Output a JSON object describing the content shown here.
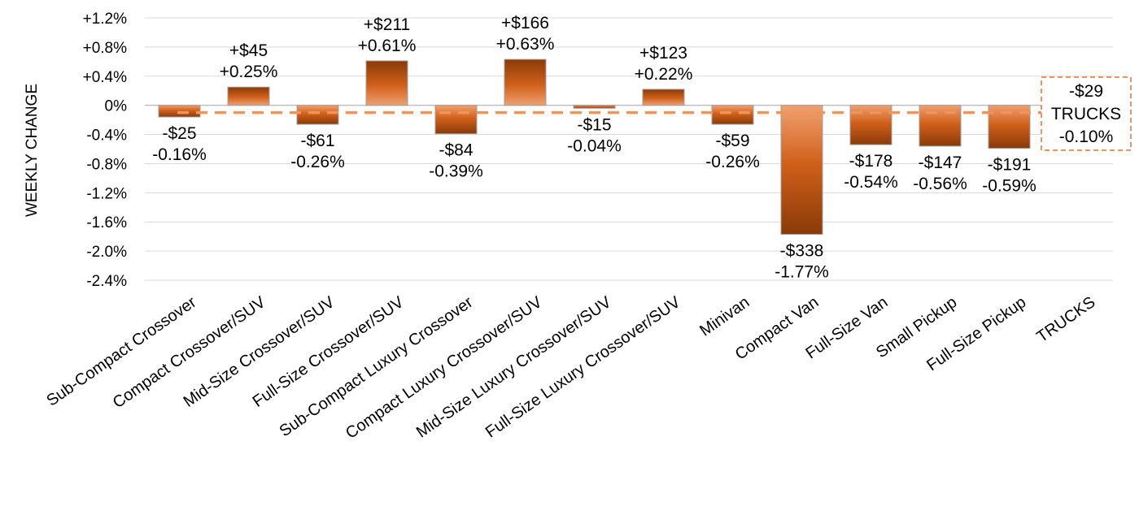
{
  "chart_data": {
    "type": "bar",
    "ylabel": "WEEKLY CHANGE",
    "ylim": [
      -2.4,
      1.2
    ],
    "yticks": [
      "+1.2%",
      "+0.8%",
      "+0.4%",
      "0%",
      "-0.4%",
      "-0.8%",
      "-1.2%",
      "-1.6%",
      "-2.0%",
      "-2.4%"
    ],
    "ytick_values": [
      1.2,
      0.8,
      0.4,
      0,
      -0.4,
      -0.8,
      -1.2,
      -1.6,
      -2.0,
      -2.4
    ],
    "grid": true,
    "categories": [
      "Sub-Compact Crossover",
      "Compact Crossover/SUV",
      "Mid-Size Crossover/SUV",
      "Full-Size Crossover/SUV",
      "Sub-Compact Luxury Crossover",
      "Compact Luxury Crossover/SUV",
      "Mid-Size Luxury Crossover/SUV",
      "Full-Size Luxury Crossover/SUV",
      "Minivan",
      "Compact Van",
      "Full-Size Van",
      "Small Pickup",
      "Full-Size Pickup",
      "TRUCKS"
    ],
    "values": [
      -0.16,
      0.25,
      -0.26,
      0.61,
      -0.39,
      0.63,
      -0.04,
      0.22,
      -0.26,
      -1.77,
      -0.54,
      -0.56,
      -0.59,
      null
    ],
    "dollar_labels": [
      "-$25",
      "+$45",
      "-$61",
      "+$211",
      "-$84",
      "+$166",
      "-$15",
      "+$123",
      "-$59",
      "-$338",
      "-$178",
      "-$147",
      "-$191",
      ""
    ],
    "percent_labels": [
      "-0.16%",
      "+0.25%",
      "-0.26%",
      "+0.61%",
      "-0.39%",
      "+0.63%",
      "-0.04%",
      "+0.22%",
      "-0.26%",
      "-1.77%",
      "-0.54%",
      "-0.56%",
      "-0.59%",
      ""
    ],
    "average": {
      "value": -0.1,
      "dollar_label": "-$29",
      "name_label": "TRUCKS",
      "percent_label": "-0.10%"
    },
    "colors": {
      "bar_dark": "#8a3a08",
      "bar_mid": "#d0601a",
      "bar_light": "#f0a070",
      "average_line": "#f0955a",
      "grid": "#d9d9d9",
      "zero_line": "#bfbfbf"
    }
  }
}
